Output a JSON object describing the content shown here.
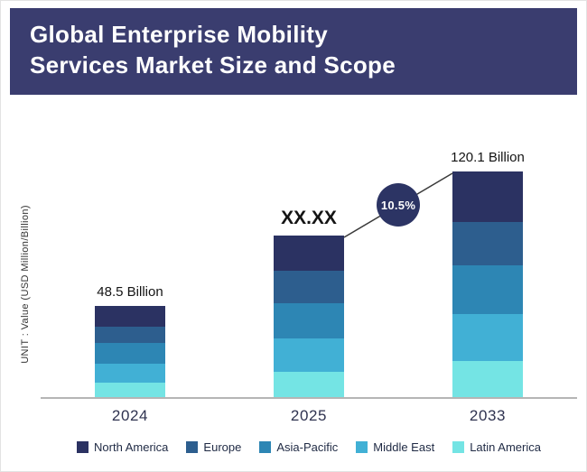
{
  "header": {
    "title_line1": "Global Enterprise Mobility",
    "title_line2": "Services Market Size and Scope",
    "background": "#3a3d6f",
    "text_color": "#ffffff"
  },
  "chart_data": {
    "type": "bar",
    "stacked": true,
    "title": "Global Enterprise Mobility Services Market Size and Scope",
    "ylabel": "UNIT : Value (USD Million/Billion)",
    "categories": [
      "2024",
      "2025",
      "2033"
    ],
    "bar_value_labels": [
      "48.5 Billion",
      "XX.XX",
      "120.1 Billion"
    ],
    "totals_billion": [
      48.5,
      null,
      120.1
    ],
    "cagr_label": "10.5%",
    "cagr_percent": 10.5,
    "legend_position": "bottom",
    "axis_line": true,
    "ylim": [
      0,
      130
    ],
    "series": [
      {
        "name": "North America",
        "color": "#2b3262",
        "values": [
          11,
          19,
          27.1
        ]
      },
      {
        "name": "Europe",
        "color": "#2d5e8e",
        "values": [
          9,
          17,
          23
        ]
      },
      {
        "name": "Asia-Pacific",
        "color": "#2d86b4",
        "values": [
          11,
          19,
          26
        ]
      },
      {
        "name": "Middle East",
        "color": "#41b0d5",
        "values": [
          10,
          17.5,
          25
        ]
      },
      {
        "name": "Latin America",
        "color": "#74e4e4",
        "values": [
          7.5,
          13.5,
          19
        ]
      }
    ]
  }
}
